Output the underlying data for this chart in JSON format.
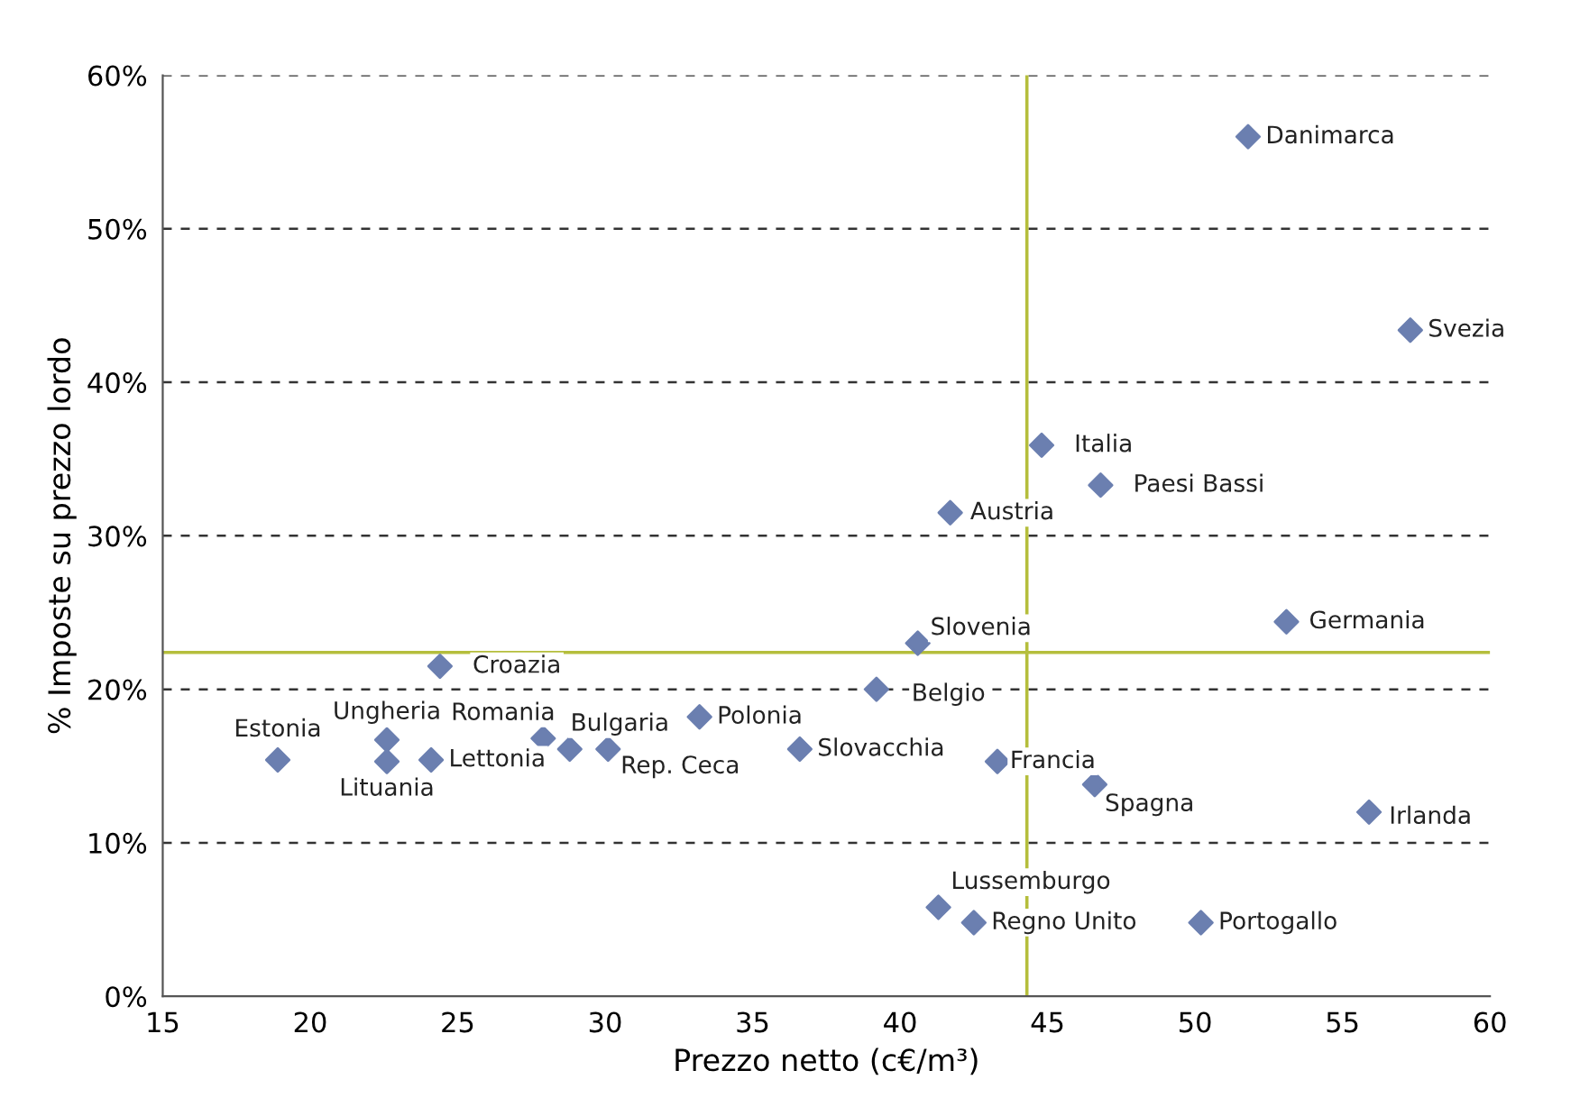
{
  "chart_data": {
    "type": "scatter",
    "xlabel": "Prezzo netto (c€/m³)",
    "ylabel": "% Imposte su prezzo lordo",
    "x": [
      51.8,
      57.3,
      44.8,
      46.8,
      41.7,
      40.6,
      53.1,
      24.4,
      39.2,
      33.2,
      22.6,
      27.9,
      28.8,
      30.1,
      36.6,
      18.9,
      22.6,
      24.1,
      43.3,
      46.6,
      55.9,
      41.3,
      42.5,
      50.2
    ],
    "series": [
      {
        "color": "#6b7fb0",
        "values": [
          56.0,
          43.4,
          35.9,
          33.3,
          31.5,
          23.0,
          24.4,
          21.5,
          20.0,
          18.2,
          16.7,
          16.8,
          16.1,
          16.1,
          16.1,
          15.4,
          15.3,
          15.4,
          15.3,
          13.8,
          12.0,
          5.8,
          4.8,
          4.8
        ]
      }
    ],
    "marker": "diamond",
    "xlim": [
      15,
      60
    ],
    "xticks": [
      15,
      20,
      25,
      30,
      35,
      40,
      45,
      50,
      55,
      60
    ],
    "ylim": [
      0,
      60
    ],
    "yticks": [
      {
        "value": 0,
        "label": "0%"
      },
      {
        "value": 10,
        "label": "10%"
      },
      {
        "value": 20,
        "label": "20%"
      },
      {
        "value": 30,
        "label": "30%"
      },
      {
        "value": 40,
        "label": "40%"
      },
      {
        "value": 50,
        "label": "50%"
      },
      {
        "value": 60,
        "label": "60%"
      }
    ],
    "grid": "y",
    "ref_lines": [
      {
        "axis": "x",
        "value": 44.3,
        "color": "#b5be3c"
      },
      {
        "axis": "y",
        "value": 22.4,
        "color": "#b5be3c"
      }
    ],
    "annotations": [
      {
        "text": "Danimarca",
        "x": 51.8,
        "y": 56.0
      },
      {
        "text": "Svezia",
        "x": 57.3,
        "y": 43.4
      },
      {
        "text": "Italia",
        "x": 44.8,
        "y": 35.9
      },
      {
        "text": "Paesi Bassi",
        "x": 46.8,
        "y": 33.3
      },
      {
        "text": "Austria",
        "x": 41.7,
        "y": 31.5
      },
      {
        "text": "Slovenia",
        "x": 40.6,
        "y": 23.0
      },
      {
        "text": "Germania",
        "x": 53.1,
        "y": 24.4
      },
      {
        "text": "Croazia",
        "x": 24.4,
        "y": 21.5
      },
      {
        "text": "Belgio",
        "x": 39.2,
        "y": 20.0
      },
      {
        "text": "Polonia",
        "x": 33.2,
        "y": 18.2
      },
      {
        "text": "Ungheria",
        "x": 22.6,
        "y": 16.7
      },
      {
        "text": "Romania",
        "x": 27.9,
        "y": 16.8
      },
      {
        "text": "Bulgaria",
        "x": 28.8,
        "y": 16.1
      },
      {
        "text": "Rep. Ceca",
        "x": 30.1,
        "y": 16.1
      },
      {
        "text": "Slovacchia",
        "x": 36.6,
        "y": 16.1
      },
      {
        "text": "Estonia",
        "x": 18.9,
        "y": 15.4
      },
      {
        "text": "Lituania",
        "x": 22.6,
        "y": 15.3
      },
      {
        "text": "Lettonia",
        "x": 24.1,
        "y": 15.4
      },
      {
        "text": "Francia",
        "x": 43.3,
        "y": 15.3
      },
      {
        "text": "Spagna",
        "x": 46.6,
        "y": 13.8
      },
      {
        "text": "Irlanda",
        "x": 55.9,
        "y": 12.0
      },
      {
        "text": "Lussemburgo",
        "x": 41.3,
        "y": 5.8
      },
      {
        "text": "Regno Unito",
        "x": 42.5,
        "y": 4.8
      },
      {
        "text": "Portogallo",
        "x": 50.2,
        "y": 4.8
      }
    ]
  }
}
